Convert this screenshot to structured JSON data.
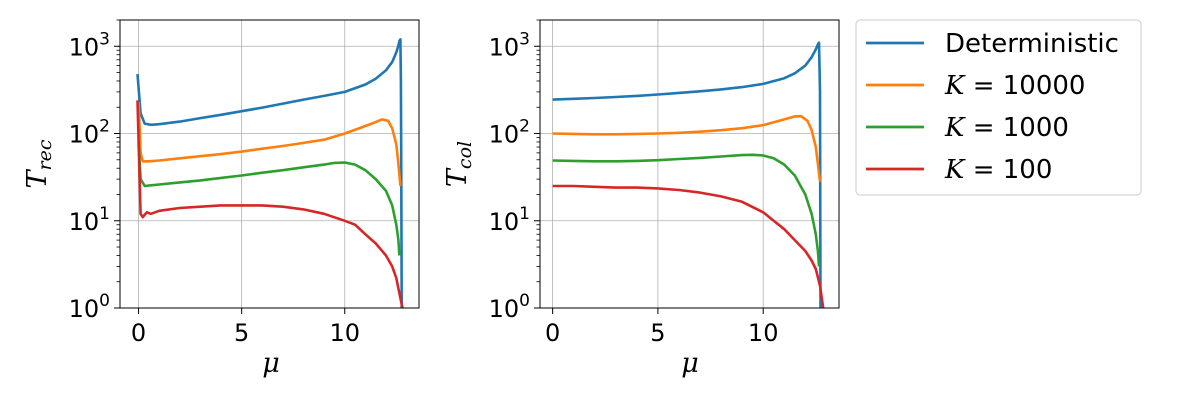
{
  "chart_data": [
    {
      "type": "line",
      "xlabel": "μ",
      "ylabel": "T",
      "ylabel_sub": "rec",
      "yscale": "log",
      "xlim": [
        -0.9,
        13.6
      ],
      "ylim": [
        1,
        2000
      ],
      "grid": true,
      "xticks": [
        {
          "label": "0",
          "value": 0
        },
        {
          "label": "5",
          "value": 5
        },
        {
          "label": "10",
          "value": 10
        }
      ],
      "yticks": [
        {
          "base": "10",
          "exp": "0",
          "value": 1
        },
        {
          "base": "10",
          "exp": "1",
          "value": 10
        },
        {
          "base": "10",
          "exp": "2",
          "value": 100
        },
        {
          "base": "10",
          "exp": "3",
          "value": 1000
        }
      ],
      "series": [
        {
          "name": "Deterministic",
          "color": "#1f77b4",
          "x": [
            -0.05,
            0.1,
            0.3,
            0.6,
            1,
            2,
            3,
            4,
            5,
            6,
            7,
            8,
            9,
            10,
            11,
            11.5,
            12,
            12.3,
            12.5,
            12.6,
            12.65,
            12.7,
            12.72,
            12.74,
            12.76
          ],
          "y": [
            480,
            170,
            130,
            126,
            128,
            137,
            150,
            164,
            180,
            198,
            220,
            245,
            270,
            300,
            365,
            425,
            530,
            660,
            850,
            1020,
            1150,
            1200,
            400,
            30,
            1
          ]
        },
        {
          "name": "K = 10000",
          "color": "#ff7f0e",
          "x": [
            0,
            0.1,
            0.2,
            0.5,
            1,
            2,
            3,
            4,
            5,
            6,
            7,
            8,
            9,
            10,
            11,
            11.5,
            11.8,
            12.1,
            12.3,
            12.5,
            12.6,
            12.7
          ],
          "y": [
            230,
            60,
            48,
            48,
            49,
            52,
            55,
            58,
            62,
            67,
            72,
            78,
            85,
            100,
            122,
            135,
            145,
            140,
            115,
            75,
            45,
            25
          ]
        },
        {
          "name": "K = 1000",
          "color": "#2ca02c",
          "x": [
            0,
            0.1,
            0.3,
            0.6,
            1,
            2,
            3,
            4,
            5,
            6,
            7,
            8,
            9,
            9.5,
            10,
            10.5,
            11,
            11.5,
            12,
            12.3,
            12.5,
            12.6,
            12.65
          ],
          "y": [
            80,
            30,
            25,
            25.5,
            26,
            27.5,
            29,
            31,
            33,
            35.5,
            38,
            41,
            44,
            46,
            46.5,
            44,
            38,
            30,
            22,
            15,
            9,
            6,
            4
          ]
        },
        {
          "name": "K = 100",
          "color": "#d62728",
          "x": [
            -0.05,
            0.05,
            0.1,
            0.2,
            0.4,
            0.6,
            1,
            2,
            3,
            4,
            5,
            6,
            7,
            8,
            9,
            10,
            10.5,
            11,
            11.5,
            12,
            12.3,
            12.5,
            12.7,
            12.8
          ],
          "y": [
            240,
            30,
            12,
            11,
            12.5,
            12,
            13,
            14,
            14.5,
            15,
            15,
            15,
            14.5,
            13.5,
            12,
            10,
            9,
            7,
            5.5,
            4,
            3,
            2.2,
            1.3,
            1
          ]
        }
      ]
    },
    {
      "type": "line",
      "xlabel": "μ",
      "ylabel": "T",
      "ylabel_sub": "col",
      "yscale": "log",
      "xlim": [
        -0.6,
        13.6
      ],
      "ylim": [
        1,
        2000
      ],
      "grid": true,
      "xticks": [
        {
          "label": "0",
          "value": 0
        },
        {
          "label": "5",
          "value": 5
        },
        {
          "label": "10",
          "value": 10
        }
      ],
      "yticks": [
        {
          "base": "10",
          "exp": "0",
          "value": 1
        },
        {
          "base": "10",
          "exp": "1",
          "value": 10
        },
        {
          "base": "10",
          "exp": "2",
          "value": 100
        },
        {
          "base": "10",
          "exp": "3",
          "value": 1000
        }
      ],
      "series": [
        {
          "name": "Deterministic",
          "color": "#1f77b4",
          "x": [
            0,
            1,
            2,
            3,
            4,
            5,
            6,
            7,
            8,
            9,
            10,
            11,
            11.5,
            12,
            12.3,
            12.5,
            12.6,
            12.65,
            12.7,
            12.72
          ],
          "y": [
            245,
            250,
            255,
            262,
            270,
            280,
            292,
            305,
            320,
            340,
            370,
            430,
            490,
            600,
            750,
            920,
            1050,
            1100,
            300,
            1
          ]
        },
        {
          "name": "K = 10000",
          "color": "#ff7f0e",
          "x": [
            0,
            1,
            2,
            3,
            4,
            5,
            6,
            7,
            8,
            9,
            10,
            11,
            11.5,
            11.8,
            12.1,
            12.3,
            12.5,
            12.6,
            12.7
          ],
          "y": [
            100,
            99,
            98,
            98,
            99,
            100,
            102,
            105,
            109,
            115,
            125,
            145,
            157,
            158,
            140,
            110,
            70,
            45,
            28
          ]
        },
        {
          "name": "K = 1000",
          "color": "#2ca02c",
          "x": [
            0,
            1,
            2,
            3,
            4,
            5,
            6,
            7,
            8,
            9,
            9.5,
            10,
            10.5,
            11,
            11.5,
            12,
            12.3,
            12.5,
            12.6,
            12.65
          ],
          "y": [
            49,
            48.5,
            48,
            48,
            48.5,
            49.5,
            51,
            52.5,
            54.5,
            56.5,
            57,
            56,
            52,
            44,
            33,
            20,
            12,
            7,
            4.5,
            3
          ]
        },
        {
          "name": "K = 100",
          "color": "#d62728",
          "x": [
            0,
            1,
            2,
            3,
            4,
            5,
            6,
            7,
            8,
            9,
            10,
            10.5,
            11,
            11.5,
            12,
            12.3,
            12.5,
            12.7,
            12.85
          ],
          "y": [
            25,
            25,
            24.5,
            24,
            24,
            23.5,
            22.5,
            21,
            19,
            16.5,
            12.5,
            10,
            8,
            6,
            4.5,
            3.5,
            2.8,
            1.8,
            1
          ]
        }
      ]
    }
  ],
  "legend": {
    "placement": "outside-right",
    "items": [
      {
        "text": "Deterministic",
        "math": false,
        "color": "#1f77b4"
      },
      {
        "var": "K",
        "eq": " = ",
        "num": "10000",
        "math": true,
        "color": "#ff7f0e"
      },
      {
        "var": "K",
        "eq": " = ",
        "num": "1000",
        "math": true,
        "color": "#2ca02c"
      },
      {
        "var": "K",
        "eq": " = ",
        "num": "100",
        "math": true,
        "color": "#d62728"
      }
    ]
  }
}
